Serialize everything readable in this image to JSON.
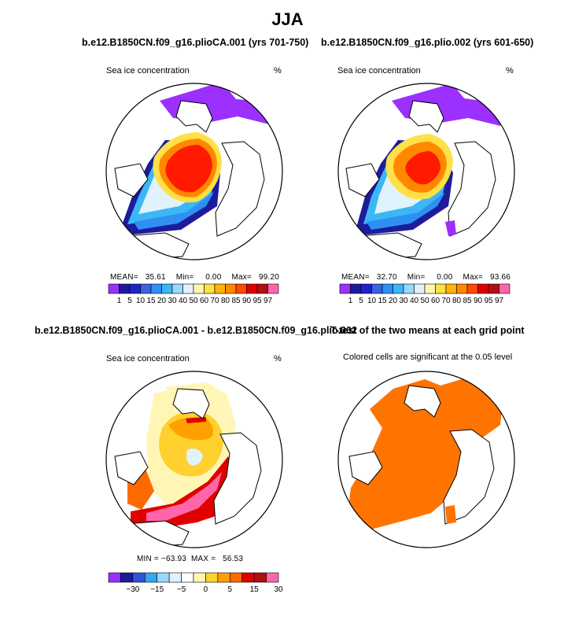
{
  "title": "JJA",
  "panels": [
    {
      "title": "b.e12.B1850CN.f09_g16.plioCA.001 (yrs 701-750)",
      "left_label": "Sea ice concentration",
      "right_label": "%",
      "stats": {
        "mean_label": "MEAN=",
        "mean": "35.61",
        "min_label": "Min=",
        "min": "0.00",
        "max_label": "Max=",
        "max": "99.20"
      }
    },
    {
      "title": "b.e12.B1850CN.f09_g16.plio.002 (yrs 601-650)",
      "left_label": "Sea ice concentration",
      "right_label": "%",
      "stats": {
        "mean_label": "MEAN=",
        "mean": "32.70",
        "min_label": "Min=",
        "min": "0.00",
        "max_label": "Max=",
        "max": "93.66"
      }
    },
    {
      "title": "b.e12.B1850CN.f09_g16.plioCA.001 - b.e12.B1850CN.f09_g16.plio.002",
      "left_label": "Sea ice concentration",
      "right_label": "%",
      "stats_text": "MIN = −63.93  MAX =   56.53"
    },
    {
      "title": "T-test of the two means at each grid point",
      "left_label": "Colored cells are significant at the 0.05 level"
    }
  ],
  "chart_data": [
    {
      "type": "heatmap",
      "name": "concentration-colorbar",
      "levels": [
        "1",
        "5",
        "10",
        "15",
        "20",
        "30",
        "40",
        "50",
        "60",
        "70",
        "80",
        "85",
        "90",
        "95",
        "97"
      ],
      "colors": [
        "#9b30ff",
        "#1c1c9c",
        "#2222cc",
        "#3a62e8",
        "#2f8ff3",
        "#3cb7f5",
        "#9ad8fb",
        "#e0f3fd",
        "#fff6b5",
        "#ffe046",
        "#ffb30a",
        "#ff8800",
        "#ff4a00",
        "#e00000",
        "#b21010",
        "#ff66aa"
      ]
    },
    {
      "type": "heatmap",
      "name": "difference-colorbar",
      "levels": [
        "−30",
        "−15",
        "−5",
        "0",
        "5",
        "15",
        "30"
      ],
      "colors": [
        "#9b30ff",
        "#1c1c9c",
        "#2d55d8",
        "#36a6f2",
        "#9ad8fb",
        "#e0f3fd",
        "#ffffff",
        "#fff6b5",
        "#ffd02e",
        "#ffa000",
        "#ff6a00",
        "#e00000",
        "#b21010",
        "#ff66aa"
      ]
    }
  ],
  "colors": {
    "sig": "#ff7300"
  }
}
